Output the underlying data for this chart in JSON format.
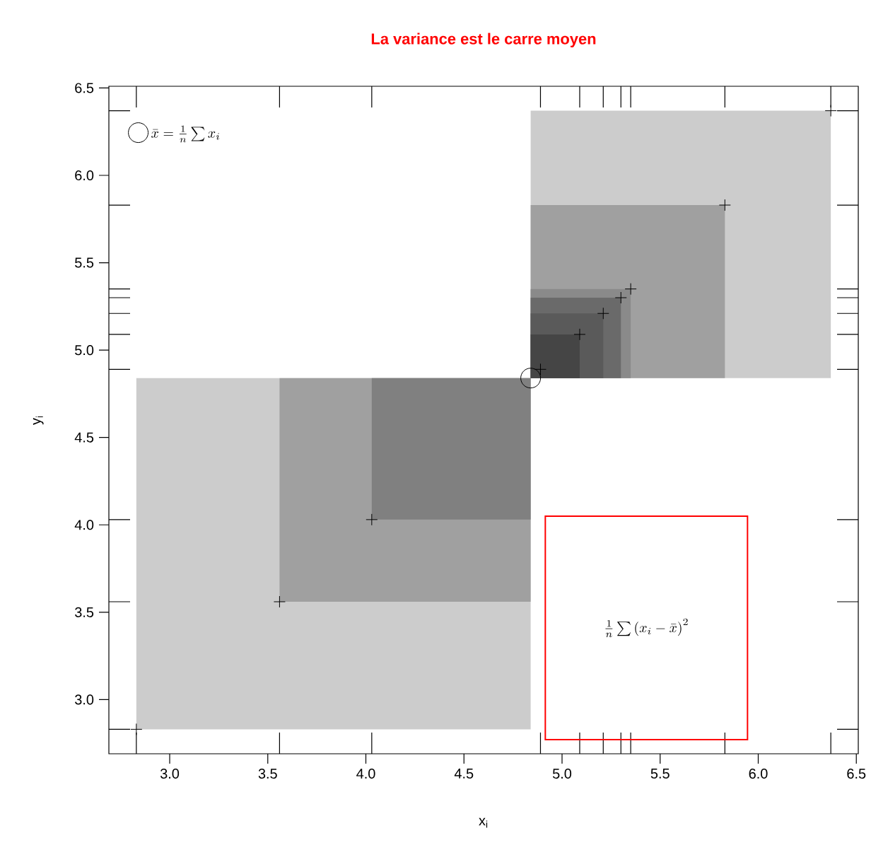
{
  "chart_data": {
    "type": "area",
    "title": "La variance est le carre moyen",
    "xlabel": "x$_{i}$",
    "ylabel": "y$_{i}$",
    "xlim": [
      2.69,
      6.51
    ],
    "ylim": [
      2.69,
      6.51
    ],
    "xticks": [
      {
        "value": 3,
        "label": "3.0"
      },
      3.5,
      {
        "value": 4,
        "label": "4.0"
      },
      4.5,
      {
        "value": 5,
        "label": "5.0"
      },
      5.5,
      {
        "value": 6,
        "label": "6.0"
      },
      6.5,
      {
        "value": 2.83,
        "label": null
      },
      {
        "value": 3.56,
        "label": null
      },
      {
        "value": 4.03,
        "label": null
      },
      {
        "value": 4.89,
        "label": null
      },
      {
        "value": 5.09,
        "label": null
      },
      {
        "value": 5.21,
        "label": null
      },
      {
        "value": 5.3,
        "label": null
      },
      {
        "value": 5.35,
        "label": null
      },
      {
        "value": 5.83,
        "label": null
      },
      {
        "value": 6.37,
        "label": null
      }
    ],
    "yticks": [
      {
        "value": 3,
        "label": "3.0"
      },
      3.5,
      {
        "value": 4,
        "label": "4.0"
      },
      4.5,
      {
        "value": 5,
        "label": "5.0"
      },
      5.5,
      {
        "value": 6,
        "label": "6.0"
      },
      6.5,
      {
        "value": 2.83,
        "label": null
      },
      {
        "value": 3.56,
        "label": null
      },
      {
        "value": 4.03,
        "label": null
      },
      {
        "value": 4.89,
        "label": null
      },
      {
        "value": 5.09,
        "label": null
      },
      {
        "value": 5.21,
        "label": null
      },
      {
        "value": 5.3,
        "label": null
      },
      {
        "value": 5.35,
        "label": null
      },
      {
        "value": 5.83,
        "label": null
      },
      {
        "value": 6.37,
        "label": null
      }
    ],
    "legend": "top left",
    "annotations": [
      "\\frac{1}{n}\\sum\\left(x_i-\\bar{x}\\right)^2"
    ],
    "series": [
      {
        "color": "#cccccc",
        "x": [
          2.83,
          2.83,
          4.84,
          4.84
        ],
        "values": [
          2.83,
          4.84,
          4.84,
          2.83
        ]
      },
      {
        "color": "#cccccc",
        "x": [
          4.84,
          4.84,
          6.37,
          6.37
        ],
        "values": [
          4.84,
          6.37,
          6.37,
          4.84
        ]
      },
      {
        "color": "#a0a0a0",
        "x": [
          3.56,
          3.56,
          4.84,
          4.84
        ],
        "values": [
          3.56,
          4.84,
          4.84,
          3.56
        ]
      },
      {
        "color": "#a0a0a0",
        "x": [
          4.84,
          4.84,
          5.83,
          5.83
        ],
        "values": [
          4.84,
          5.83,
          5.83,
          4.84
        ]
      },
      {
        "color": "#808080",
        "x": [
          4.03,
          4.03,
          4.84,
          4.84
        ],
        "values": [
          4.03,
          4.84,
          4.84,
          4.03
        ]
      },
      {
        "color": "#8a8a8a",
        "x": [
          4.84,
          4.84,
          5.35,
          5.35
        ],
        "values": [
          4.84,
          5.35,
          5.35,
          4.84
        ]
      },
      {
        "color": "#6a6a6a",
        "x": [
          4.84,
          4.84,
          5.3,
          5.3
        ],
        "values": [
          4.84,
          5.3,
          5.3,
          4.84
        ]
      },
      {
        "color": "#5a5a5a",
        "x": [
          4.84,
          4.84,
          5.21,
          5.21
        ],
        "values": [
          4.84,
          5.21,
          5.21,
          4.84
        ]
      },
      {
        "color": "#454545",
        "x": [
          4.84,
          4.84,
          5.09,
          5.09
        ],
        "values": [
          4.84,
          5.09,
          5.09,
          4.84
        ]
      },
      {
        "type": "scatter",
        "marker": "cross",
        "color": "#000000",
        "x": [
          2.83,
          3.56,
          4.03,
          4.89,
          5.09,
          5.21,
          5.3,
          5.35,
          5.83,
          6.37
        ],
        "values": [
          2.83,
          3.56,
          4.03,
          4.89,
          5.09,
          5.21,
          5.3,
          5.35,
          5.83,
          6.37
        ]
      },
      {
        "type": "scatter",
        "marker": "circle",
        "color": "#000000",
        "name": "\\bar{x}=\\frac{1}{n}\\sum x_i",
        "x": [
          4.84
        ],
        "values": [
          4.84
        ]
      }
    ]
  }
}
